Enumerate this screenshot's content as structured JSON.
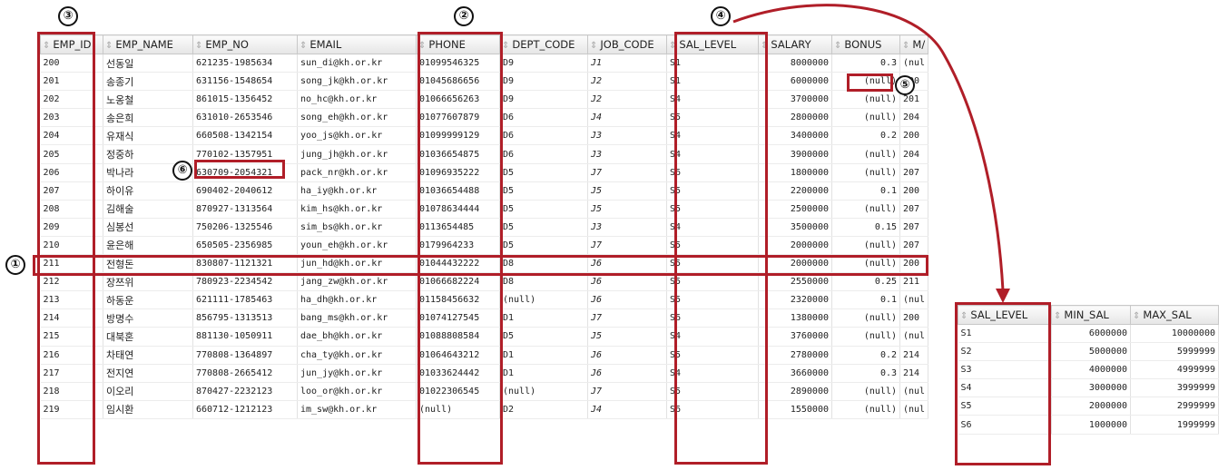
{
  "employee": {
    "columns": [
      "EMP_ID",
      "EMP_NAME",
      "EMP_NO",
      "EMAIL",
      "PHONE",
      "DEPT_CODE",
      "JOB_CODE",
      "SAL_LEVEL",
      "SALARY",
      "BONUS",
      "M/"
    ],
    "rows": [
      [
        "200",
        "선동일",
        "621235-1985634",
        "sun_di@kh.or.kr",
        "01099546325",
        "D9",
        "J1",
        "S1",
        "8000000",
        "0.3",
        "(nul"
      ],
      [
        "201",
        "송종기",
        "631156-1548654",
        "song_jk@kh.or.kr",
        "01045686656",
        "D9",
        "J2",
        "S1",
        "6000000",
        "(null)",
        "200"
      ],
      [
        "202",
        "노옹철",
        "861015-1356452",
        "no_hc@kh.or.kr",
        "01066656263",
        "D9",
        "J2",
        "S4",
        "3700000",
        "(null)",
        "201"
      ],
      [
        "203",
        "송은희",
        "631010-2653546",
        "song_eh@kh.or.kr",
        "01077607879",
        "D6",
        "J4",
        "S5",
        "2800000",
        "(null)",
        "204"
      ],
      [
        "204",
        "유재식",
        "660508-1342154",
        "yoo_js@kh.or.kr",
        "01099999129",
        "D6",
        "J3",
        "S4",
        "3400000",
        "0.2",
        "200"
      ],
      [
        "205",
        "정중하",
        "770102-1357951",
        "jung_jh@kh.or.kr",
        "01036654875",
        "D6",
        "J3",
        "S4",
        "3900000",
        "(null)",
        "204"
      ],
      [
        "206",
        "박나라",
        "630709-2054321",
        "pack_nr@kh.or.kr",
        "01096935222",
        "D5",
        "J7",
        "S6",
        "1800000",
        "(null)",
        "207"
      ],
      [
        "207",
        "하이유",
        "690402-2040612",
        "ha_iy@kh.or.kr",
        "01036654488",
        "D5",
        "J5",
        "S5",
        "2200000",
        "0.1",
        "200"
      ],
      [
        "208",
        "김해술",
        "870927-1313564",
        "kim_hs@kh.or.kr",
        "01078634444",
        "D5",
        "J5",
        "S5",
        "2500000",
        "(null)",
        "207"
      ],
      [
        "209",
        "심봉선",
        "750206-1325546",
        "sim_bs@kh.or.kr",
        "0113654485",
        "D5",
        "J3",
        "S4",
        "3500000",
        "0.15",
        "207"
      ],
      [
        "210",
        "윤은해",
        "650505-2356985",
        "youn_eh@kh.or.kr",
        "0179964233",
        "D5",
        "J7",
        "S5",
        "2000000",
        "(null)",
        "207"
      ],
      [
        "211",
        "전형돈",
        "830807-1121321",
        "jun_hd@kh.or.kr",
        "01044432222",
        "D8",
        "J6",
        "S5",
        "2000000",
        "(null)",
        "200"
      ],
      [
        "212",
        "장쯔위",
        "780923-2234542",
        "jang_zw@kh.or.kr",
        "01066682224",
        "D8",
        "J6",
        "S5",
        "2550000",
        "0.25",
        "211"
      ],
      [
        "213",
        "하동운",
        "621111-1785463",
        "ha_dh@kh.or.kr",
        "01158456632",
        "(null)",
        "J6",
        "S5",
        "2320000",
        "0.1",
        "(nul"
      ],
      [
        "214",
        "방명수",
        "856795-1313513",
        "bang_ms@kh.or.kr",
        "01074127545",
        "D1",
        "J7",
        "S6",
        "1380000",
        "(null)",
        "200"
      ],
      [
        "215",
        "대북혼",
        "881130-1050911",
        "dae_bh@kh.or.kr",
        "01088808584",
        "D5",
        "J5",
        "S4",
        "3760000",
        "(null)",
        "(nul"
      ],
      [
        "216",
        "차태연",
        "770808-1364897",
        "cha_ty@kh.or.kr",
        "01064643212",
        "D1",
        "J6",
        "S5",
        "2780000",
        "0.2",
        "214"
      ],
      [
        "217",
        "전지연",
        "770808-2665412",
        "jun_jy@kh.or.kr",
        "01033624442",
        "D1",
        "J6",
        "S4",
        "3660000",
        "0.3",
        "214"
      ],
      [
        "218",
        "이오리",
        "870427-2232123",
        "loo_or@kh.or.kr",
        "01022306545",
        "(null)",
        "J7",
        "S5",
        "2890000",
        "(null)",
        "(nul"
      ],
      [
        "219",
        "임시환",
        "660712-1212123",
        "im_sw@kh.or.kr",
        "(null)",
        "D2",
        "J4",
        "S6",
        "1550000",
        "(null)",
        "(nul"
      ]
    ]
  },
  "sal_grade": {
    "columns": [
      "SAL_LEVEL",
      "MIN_SAL",
      "MAX_SAL"
    ],
    "rows": [
      [
        "S1",
        "6000000",
        "10000000"
      ],
      [
        "S2",
        "5000000",
        "5999999"
      ],
      [
        "S3",
        "4000000",
        "4999999"
      ],
      [
        "S4",
        "3000000",
        "3999999"
      ],
      [
        "S5",
        "2000000",
        "2999999"
      ],
      [
        "S6",
        "1000000",
        "1999999"
      ]
    ]
  },
  "markers": {
    "m1": "①",
    "m2": "②",
    "m3": "③",
    "m4": "④",
    "m5": "⑤",
    "m6": "⑥"
  },
  "colors": {
    "highlight": "#b01e28",
    "header_bg": "#ececec",
    "grid_line": "#e2e2e2"
  },
  "icons": {
    "sort": "sort-arrows-icon"
  }
}
